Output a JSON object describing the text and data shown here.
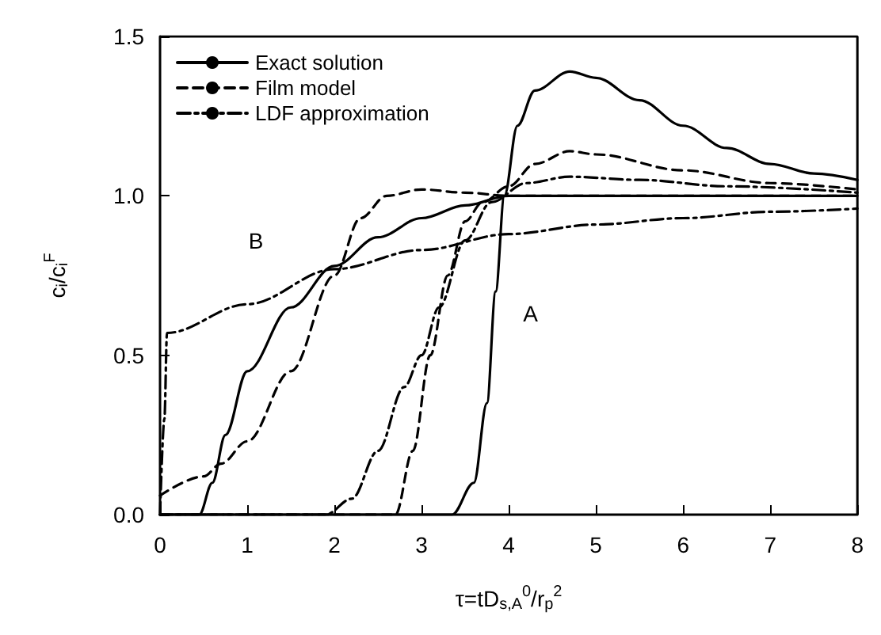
{
  "chart_data": {
    "type": "line",
    "xlabel": "τ=tD$_{s,A}$$^{0}$/r$_{p}$$^{2}$",
    "ylabel": "c$_{i}$/c$_{i}$$^{F}$",
    "xlim": [
      0,
      8
    ],
    "xticks": [
      0,
      1,
      2,
      3,
      4,
      5,
      6,
      7,
      8
    ],
    "ylim": [
      0,
      1.5
    ],
    "yticks": [
      {
        "value": 0,
        "label": "0.0"
      },
      {
        "value": 0.5,
        "label": "0.5"
      },
      {
        "value": 1,
        "label": "1.0"
      },
      {
        "value": 1.5,
        "label": "1.5"
      }
    ],
    "grid": false,
    "legend": "top left",
    "marker": "none",
    "annotations": [
      "B",
      "A"
    ],
    "series": [
      {
        "name": "Exact solution",
        "color": "#000000",
        "line_style": "solid",
        "x": [
          0,
          0.45,
          0.6,
          0.75,
          1.0,
          1.5,
          2.0,
          2.5,
          3.0,
          3.5,
          4.0,
          5,
          6,
          7,
          8
        ],
        "values": [
          0,
          0,
          0.1,
          0.25,
          0.45,
          0.65,
          0.78,
          0.87,
          0.93,
          0.97,
          1.0,
          1.0,
          1.0,
          1.0,
          1.0
        ]
      },
      {
        "color": "#000000",
        "line_style": "solid",
        "x": [
          0,
          3.35,
          3.6,
          3.75,
          3.85,
          3.95,
          4.1,
          4.3,
          4.7,
          5.0,
          5.5,
          6,
          6.5,
          7,
          7.5,
          8
        ],
        "values": [
          0,
          0,
          0.1,
          0.35,
          0.7,
          1.0,
          1.22,
          1.33,
          1.39,
          1.37,
          1.3,
          1.22,
          1.15,
          1.1,
          1.07,
          1.05
        ]
      },
      {
        "name": "Film model",
        "color": "#000000",
        "line_style": "dashed",
        "x": [
          0,
          0.5,
          0.7,
          1.0,
          1.5,
          2.0,
          2.3,
          2.6,
          3.0,
          3.5,
          4,
          6,
          8
        ],
        "values": [
          0.06,
          0.12,
          0.16,
          0.23,
          0.45,
          0.75,
          0.93,
          1.0,
          1.02,
          1.01,
          1.0,
          1.0,
          1.0
        ]
      },
      {
        "color": "#000000",
        "line_style": "dashed",
        "x": [
          0,
          2.7,
          2.9,
          3.1,
          3.3,
          3.5,
          3.7,
          4,
          4.3,
          4.7,
          5,
          6,
          7,
          8
        ],
        "values": [
          0,
          0,
          0.2,
          0.5,
          0.75,
          0.92,
          0.98,
          1.03,
          1.1,
          1.14,
          1.13,
          1.08,
          1.04,
          1.02
        ]
      },
      {
        "name": "LDF approximation",
        "color": "#000000",
        "line_style": "dashdot",
        "x": [
          0,
          0.05,
          0.08,
          1,
          2,
          3,
          4,
          5,
          6,
          7,
          8
        ],
        "values": [
          0,
          0.3,
          0.57,
          0.66,
          0.77,
          0.83,
          0.88,
          0.91,
          0.93,
          0.95,
          0.96
        ]
      },
      {
        "color": "#000000",
        "line_style": "dashdot",
        "x": [
          0,
          1.9,
          2.2,
          2.5,
          2.8,
          3.0,
          3.2,
          3.5,
          3.8,
          4.2,
          4.7,
          5.5,
          6.5,
          8
        ],
        "values": [
          0,
          0,
          0.05,
          0.2,
          0.4,
          0.5,
          0.65,
          0.86,
          0.98,
          1.04,
          1.06,
          1.05,
          1.03,
          1.01
        ]
      }
    ]
  }
}
